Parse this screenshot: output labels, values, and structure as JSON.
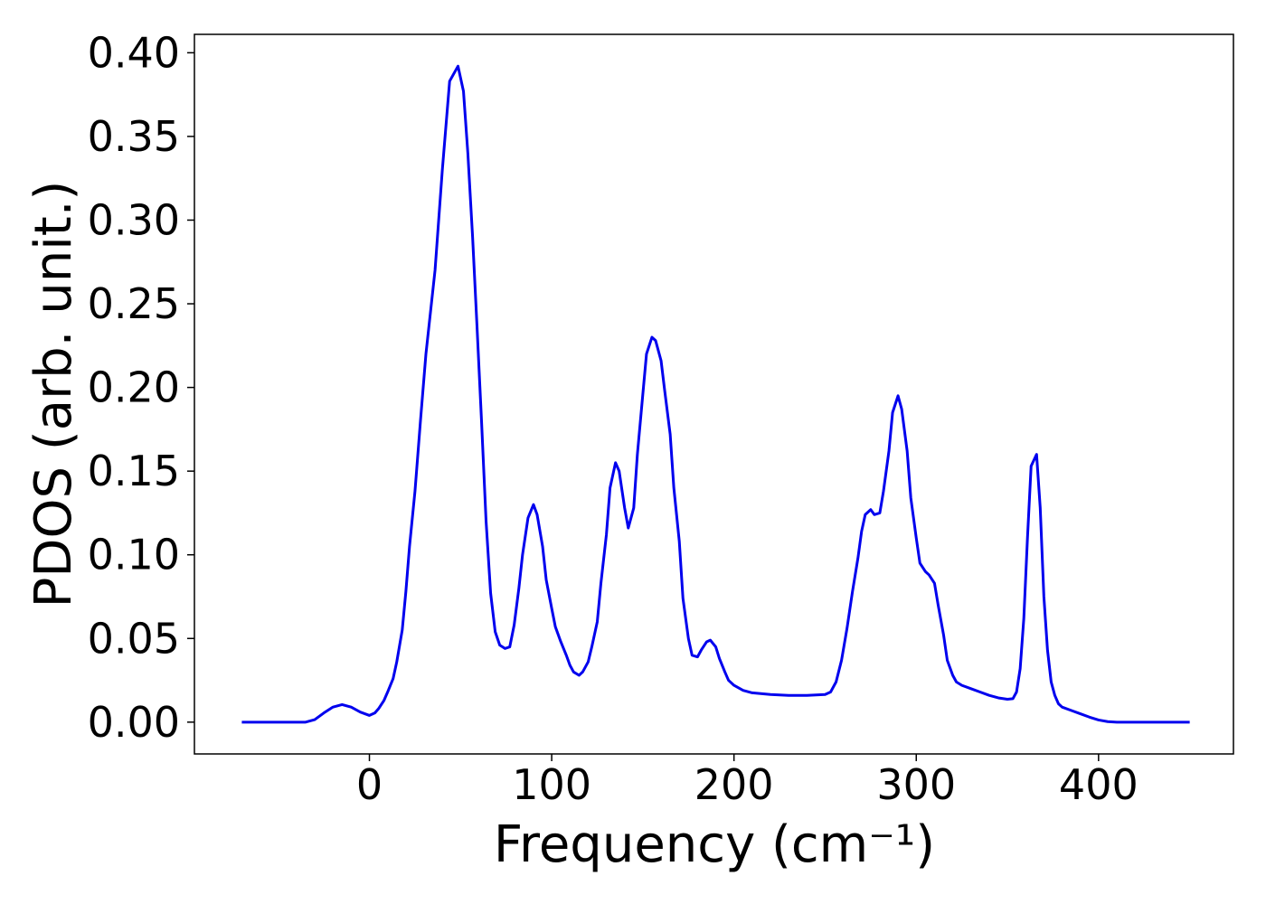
{
  "chart_data": {
    "type": "line",
    "xlabel": "Frequency (cm⁻¹)",
    "ylabel": "PDOS (arb. unit.)",
    "color": "#0000ee",
    "xlim": [
      -96,
      474
    ],
    "ylim": [
      -0.019,
      0.411
    ],
    "xticks": [
      0,
      100,
      200,
      300,
      400
    ],
    "yticks": [
      {
        "value": 0,
        "label": "0.00"
      },
      {
        "value": 0.05,
        "label": "0.05"
      },
      {
        "value": 0.1,
        "label": "0.10"
      },
      {
        "value": 0.15,
        "label": "0.15"
      },
      {
        "value": 0.2,
        "label": "0.20"
      },
      {
        "value": 0.25,
        "label": "0.25"
      },
      {
        "value": 0.3,
        "label": "0.30"
      },
      {
        "value": 0.35,
        "label": "0.35"
      },
      {
        "value": 0.4,
        "label": "0.40"
      }
    ],
    "x": [
      -70,
      -35,
      -30,
      -25,
      -20,
      -15,
      -10,
      -5,
      0,
      3,
      5,
      8,
      10,
      13,
      15,
      18,
      20,
      22,
      25,
      28,
      31,
      36,
      40,
      44,
      48.6,
      51.6,
      54,
      56.6,
      59,
      61.5,
      64,
      66.5,
      69,
      71.5,
      74.4,
      77,
      79.4,
      82,
      84,
      87,
      90,
      92,
      95,
      97,
      100,
      102,
      105,
      108,
      110,
      112,
      115,
      117,
      120,
      122,
      125,
      127,
      130,
      132,
      135,
      137,
      140,
      142,
      145,
      147,
      150,
      152,
      155,
      157,
      160,
      162,
      165,
      167,
      170,
      172,
      175,
      177,
      180,
      182,
      185,
      187,
      190,
      192,
      195,
      197,
      200,
      205,
      210,
      220,
      230,
      240,
      250,
      253,
      256,
      259,
      262,
      265,
      268,
      270,
      272,
      275,
      277,
      280,
      282,
      285,
      287,
      290,
      292,
      295,
      297,
      300,
      302,
      305,
      307,
      310,
      312,
      315,
      317,
      320,
      322,
      325,
      330,
      335,
      340,
      345,
      350,
      353,
      355,
      357,
      359,
      361,
      363,
      366,
      368,
      370,
      372,
      374,
      376,
      378,
      380,
      385,
      390,
      395,
      400,
      405,
      410,
      450
    ],
    "values": [
      0,
      0,
      0.0015,
      0.0055,
      0.009,
      0.0105,
      0.009,
      0.006,
      0.004,
      0.0055,
      0.008,
      0.013,
      0.018,
      0.026,
      0.036,
      0.055,
      0.078,
      0.105,
      0.138,
      0.18,
      0.22,
      0.27,
      0.33,
      0.383,
      0.392,
      0.377,
      0.34,
      0.29,
      0.237,
      0.18,
      0.12,
      0.077,
      0.054,
      0.046,
      0.044,
      0.045,
      0.058,
      0.08,
      0.1,
      0.122,
      0.13,
      0.124,
      0.105,
      0.085,
      0.068,
      0.057,
      0.048,
      0.04,
      0.034,
      0.03,
      0.028,
      0.03,
      0.036,
      0.045,
      0.06,
      0.083,
      0.112,
      0.14,
      0.155,
      0.15,
      0.128,
      0.116,
      0.128,
      0.16,
      0.196,
      0.22,
      0.23,
      0.228,
      0.216,
      0.198,
      0.172,
      0.14,
      0.108,
      0.074,
      0.05,
      0.04,
      0.039,
      0.043,
      0.048,
      0.049,
      0.045,
      0.038,
      0.03,
      0.025,
      0.022,
      0.019,
      0.0175,
      0.0165,
      0.016,
      0.016,
      0.0165,
      0.018,
      0.024,
      0.037,
      0.056,
      0.078,
      0.098,
      0.114,
      0.124,
      0.127,
      0.124,
      0.125,
      0.138,
      0.162,
      0.185,
      0.195,
      0.187,
      0.162,
      0.134,
      0.11,
      0.095,
      0.09,
      0.088,
      0.083,
      0.07,
      0.052,
      0.037,
      0.028,
      0.024,
      0.022,
      0.02,
      0.018,
      0.016,
      0.0145,
      0.0137,
      0.014,
      0.018,
      0.032,
      0.062,
      0.11,
      0.153,
      0.16,
      0.128,
      0.075,
      0.043,
      0.024,
      0.016,
      0.011,
      0.009,
      0.007,
      0.005,
      0.003,
      0.0013,
      0.0003,
      0,
      0
    ]
  }
}
